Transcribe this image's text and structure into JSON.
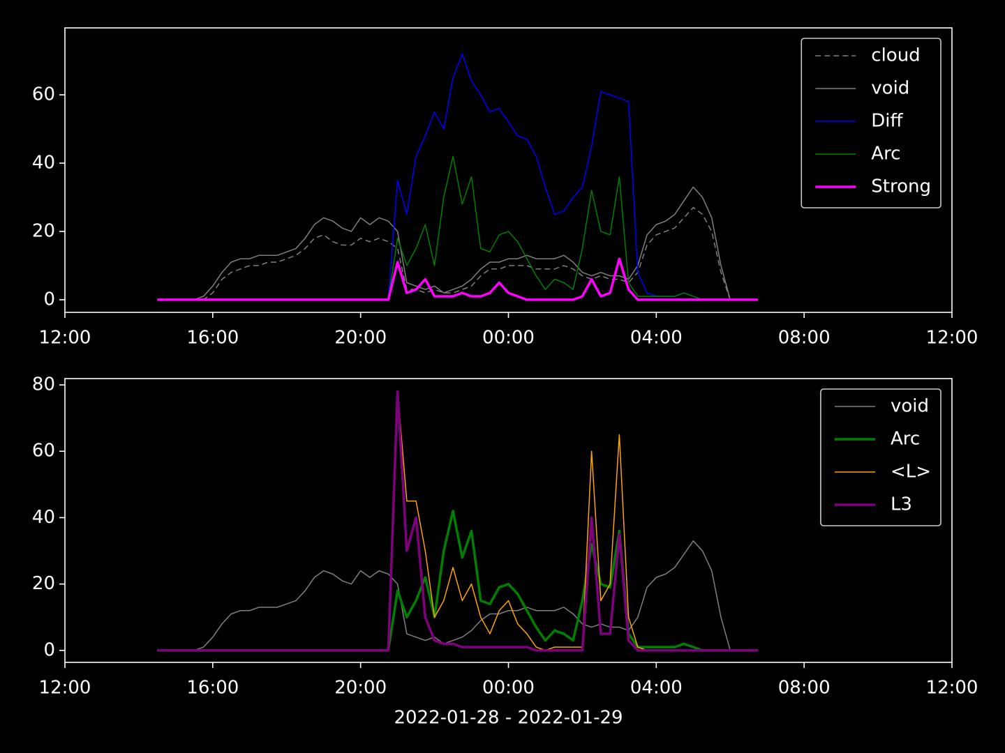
{
  "chart_data": [
    {
      "type": "line",
      "x": [
        14.5,
        14.75,
        15,
        15.25,
        15.5,
        15.75,
        16,
        16.25,
        16.5,
        16.75,
        17,
        17.25,
        17.5,
        17.75,
        18,
        18.25,
        18.5,
        18.75,
        19,
        19.25,
        19.5,
        19.75,
        20,
        20.25,
        20.5,
        20.75,
        21,
        21.25,
        21.5,
        21.75,
        22,
        22.25,
        22.5,
        22.75,
        23,
        23.25,
        23.5,
        23.75,
        24,
        24.25,
        24.5,
        24.75,
        25,
        25.25,
        25.5,
        25.75,
        26,
        26.25,
        26.5,
        26.75,
        27,
        27.25,
        27.5,
        27.75,
        28,
        28.25,
        28.5,
        28.75,
        29,
        29.25,
        29.5,
        29.75,
        30,
        30.25,
        30.5,
        30.75
      ],
      "xlim": [
        12,
        36
      ],
      "xticks": [
        {
          "value": 12,
          "label": "12:00"
        },
        {
          "value": 16,
          "label": "16:00"
        },
        {
          "value": 20,
          "label": "20:00"
        },
        {
          "value": 24,
          "label": "00:00"
        },
        {
          "value": 28,
          "label": "04:00"
        },
        {
          "value": 32,
          "label": "08:00"
        },
        {
          "value": 36,
          "label": "12:00"
        }
      ],
      "ylim": [
        -3.7,
        79.6
      ],
      "yticks": [
        0,
        20,
        40,
        60
      ],
      "legend": "upper right",
      "series": [
        {
          "name": "cloud",
          "color": "#808080",
          "linestyle": "dashed",
          "linewidth": 1.5,
          "values": [
            0,
            0,
            0,
            0,
            0,
            0,
            2,
            6,
            8,
            9,
            10,
            10,
            11,
            11,
            12,
            13,
            15,
            18,
            19,
            17,
            16,
            16,
            18,
            17,
            18,
            17,
            15,
            3,
            3,
            2,
            3,
            2,
            2,
            3,
            4,
            7,
            9,
            9,
            10,
            10,
            10,
            9,
            9,
            9,
            10,
            9,
            7,
            6,
            7,
            6,
            6,
            5,
            8,
            16,
            19,
            20,
            21,
            24,
            27,
            25,
            20,
            8,
            0,
            0,
            0,
            0
          ]
        },
        {
          "name": "void",
          "color": "#808080",
          "linestyle": "solid",
          "linewidth": 1.5,
          "values": [
            0,
            0,
            0,
            0,
            0,
            1,
            4,
            8,
            11,
            12,
            12,
            13,
            13,
            13,
            14,
            15,
            18,
            22,
            24,
            23,
            21,
            20,
            24,
            22,
            24,
            23,
            20,
            5,
            4,
            3,
            4,
            2,
            3,
            4,
            6,
            9,
            11,
            11,
            12,
            12,
            13,
            12,
            12,
            12,
            13,
            11,
            8,
            7,
            8,
            7,
            7,
            6,
            10,
            19,
            22,
            23,
            25,
            29,
            33,
            30,
            24,
            10,
            0,
            0,
            0,
            0
          ]
        },
        {
          "name": "Diff",
          "color": "#0000ff",
          "linestyle": "solid",
          "linewidth": 1.5,
          "values": [
            0,
            0,
            0,
            0,
            0,
            0,
            0,
            0,
            0,
            0,
            0,
            0,
            0,
            0,
            0,
            0,
            0,
            0,
            0,
            0,
            0,
            0,
            0,
            0,
            0,
            0,
            35,
            25,
            42,
            48,
            55,
            50,
            65,
            72,
            64,
            60,
            55,
            56,
            52,
            48,
            47,
            42,
            33,
            25,
            26,
            30,
            33,
            45,
            61,
            60,
            59,
            58,
            8,
            2,
            1,
            1,
            1,
            2,
            1,
            0,
            0,
            0,
            0,
            0,
            0,
            0
          ]
        },
        {
          "name": "Arc",
          "color": "#008000",
          "linestyle": "solid",
          "linewidth": 1.5,
          "values": [
            0,
            0,
            0,
            0,
            0,
            0,
            0,
            0,
            0,
            0,
            0,
            0,
            0,
            0,
            0,
            0,
            0,
            0,
            0,
            0,
            0,
            0,
            0,
            0,
            0,
            0,
            18,
            10,
            15,
            22,
            10,
            30,
            42,
            28,
            36,
            15,
            14,
            19,
            20,
            17,
            12,
            7,
            3,
            6,
            5,
            3,
            15,
            32,
            20,
            19,
            36,
            5,
            1,
            1,
            1,
            1,
            1,
            2,
            1,
            0,
            0,
            0,
            0,
            0,
            0,
            0
          ]
        },
        {
          "name": "Strong",
          "color": "#ff00ff",
          "linestyle": "solid",
          "linewidth": 3.5,
          "values": [
            0,
            0,
            0,
            0,
            0,
            0,
            0,
            0,
            0,
            0,
            0,
            0,
            0,
            0,
            0,
            0,
            0,
            0,
            0,
            0,
            0,
            0,
            0,
            0,
            0,
            0,
            11,
            2,
            3,
            6,
            1,
            1,
            1,
            2,
            1,
            1,
            2,
            5,
            2,
            1,
            0,
            0,
            0,
            0,
            0,
            0,
            1,
            6,
            1,
            2,
            12,
            3,
            0,
            0,
            0,
            0,
            0,
            0,
            0,
            0,
            0,
            0,
            0,
            0,
            0,
            0
          ]
        }
      ]
    },
    {
      "type": "line",
      "x": [
        14.5,
        14.75,
        15,
        15.25,
        15.5,
        15.75,
        16,
        16.25,
        16.5,
        16.75,
        17,
        17.25,
        17.5,
        17.75,
        18,
        18.25,
        18.5,
        18.75,
        19,
        19.25,
        19.5,
        19.75,
        20,
        20.25,
        20.5,
        20.75,
        21,
        21.25,
        21.5,
        21.75,
        22,
        22.25,
        22.5,
        22.75,
        23,
        23.25,
        23.5,
        23.75,
        24,
        24.25,
        24.5,
        24.75,
        25,
        25.25,
        25.5,
        25.75,
        26,
        26.25,
        26.5,
        26.75,
        27,
        27.25,
        27.5,
        27.75,
        28,
        28.25,
        28.5,
        28.75,
        29,
        29.25,
        29.5,
        29.75,
        30,
        30.25,
        30.5,
        30.75
      ],
      "xlim": [
        12,
        36
      ],
      "xticks": [
        {
          "value": 12,
          "label": "12:00"
        },
        {
          "value": 16,
          "label": "16:00"
        },
        {
          "value": 20,
          "label": "20:00"
        },
        {
          "value": 24,
          "label": "00:00"
        },
        {
          "value": 28,
          "label": "04:00"
        },
        {
          "value": 32,
          "label": "08:00"
        },
        {
          "value": 36,
          "label": "12:00"
        }
      ],
      "xlabel": "2022-01-28 - 2022-01-29",
      "ylim": [
        -3.6,
        81.9
      ],
      "yticks": [
        0,
        20,
        40,
        60,
        80
      ],
      "legend": "upper right",
      "series": [
        {
          "name": "void",
          "color": "#808080",
          "linestyle": "solid",
          "linewidth": 1.5,
          "values": [
            0,
            0,
            0,
            0,
            0,
            1,
            4,
            8,
            11,
            12,
            12,
            13,
            13,
            13,
            14,
            15,
            18,
            22,
            24,
            23,
            21,
            20,
            24,
            22,
            24,
            23,
            20,
            5,
            4,
            3,
            4,
            2,
            3,
            4,
            6,
            9,
            11,
            11,
            12,
            12,
            13,
            12,
            12,
            12,
            13,
            11,
            8,
            7,
            8,
            7,
            7,
            6,
            10,
            19,
            22,
            23,
            25,
            29,
            33,
            30,
            24,
            10,
            0,
            0,
            0,
            0
          ]
        },
        {
          "name": "Arc",
          "color": "#008000",
          "linestyle": "solid",
          "linewidth": 3.5,
          "values": [
            0,
            0,
            0,
            0,
            0,
            0,
            0,
            0,
            0,
            0,
            0,
            0,
            0,
            0,
            0,
            0,
            0,
            0,
            0,
            0,
            0,
            0,
            0,
            0,
            0,
            0,
            18,
            10,
            15,
            22,
            10,
            30,
            42,
            28,
            36,
            15,
            14,
            19,
            20,
            17,
            12,
            7,
            3,
            6,
            5,
            3,
            15,
            32,
            20,
            19,
            36,
            5,
            1,
            1,
            1,
            1,
            1,
            2,
            1,
            0,
            0,
            0,
            0,
            0,
            0,
            0
          ]
        },
        {
          "name": "<L>",
          "color": "#ffa500",
          "linestyle": "solid",
          "linewidth": 1.5,
          "values": [
            0,
            0,
            0,
            0,
            0,
            0,
            0,
            0,
            0,
            0,
            0,
            0,
            0,
            0,
            0,
            0,
            0,
            0,
            0,
            0,
            0,
            0,
            0,
            0,
            0,
            0,
            78,
            45,
            45,
            30,
            10,
            15,
            25,
            15,
            20,
            10,
            5,
            12,
            15,
            8,
            5,
            1,
            0,
            1,
            1,
            1,
            1,
            60,
            15,
            20,
            65,
            10,
            1,
            0,
            0,
            0,
            0,
            0,
            0,
            0,
            0,
            0,
            0,
            0,
            0,
            0
          ]
        },
        {
          "name": "L3",
          "color": "#800080",
          "linestyle": "solid",
          "linewidth": 3.5,
          "values": [
            0,
            0,
            0,
            0,
            0,
            0,
            0,
            0,
            0,
            0,
            0,
            0,
            0,
            0,
            0,
            0,
            0,
            0,
            0,
            0,
            0,
            0,
            0,
            0,
            0,
            0,
            78,
            30,
            40,
            10,
            3,
            2,
            2,
            1,
            1,
            1,
            1,
            1,
            1,
            1,
            1,
            0,
            0,
            0,
            0,
            0,
            0,
            40,
            5,
            5,
            35,
            3,
            0,
            0,
            0,
            0,
            0,
            0,
            0,
            0,
            0,
            0,
            0,
            0,
            0,
            0
          ]
        }
      ]
    }
  ]
}
